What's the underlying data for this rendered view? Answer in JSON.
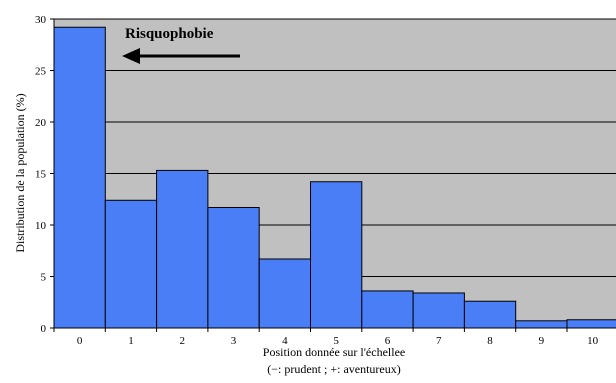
{
  "chart_data": {
    "type": "bar",
    "categories": [
      "0",
      "1",
      "2",
      "3",
      "4",
      "5",
      "6",
      "7",
      "8",
      "9",
      "10"
    ],
    "values": [
      29.2,
      12.4,
      15.3,
      11.7,
      6.7,
      14.2,
      3.6,
      3.4,
      2.6,
      0.7,
      0.8
    ],
    "title": "",
    "xlabel": "Position donnée sur l'échellee",
    "xlabel_line2": "(−: prudent ; +: aventureux)",
    "ylabel": "Distribution de la population (%)",
    "ylim": [
      0,
      30
    ],
    "yticks": [
      "0",
      "5",
      "10",
      "15",
      "20",
      "25",
      "30"
    ],
    "grid": true,
    "annotation": "Risquophobie",
    "colors": {
      "bar": "#4a7ef7",
      "plot_background": "#c0c0c0",
      "gridline": "#000000"
    }
  }
}
